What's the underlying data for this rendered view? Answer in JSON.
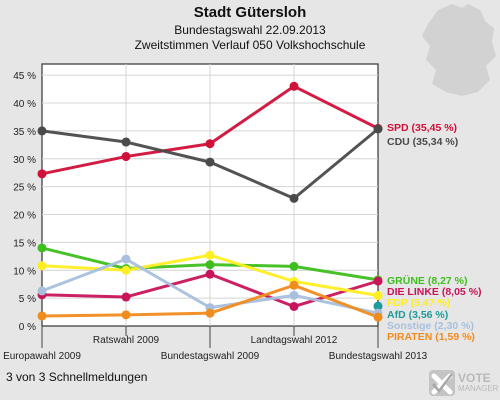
{
  "header": {
    "title": "Stadt Gütersloh",
    "subtitle": "Bundestagswahl 22.09.2013",
    "subtitle2": "Zweitstimmen Verlauf 050 Volkshochschule"
  },
  "footer": {
    "text": "3 von 3 Schnellmeldungen"
  },
  "logo": {
    "line1": "VOTE",
    "line2": "MANAGER"
  },
  "chart_data": {
    "type": "line",
    "x": [
      "Europawahl 2009",
      "Ratswahl 2009",
      "Bundestagswahl 2009",
      "Landtagswahl 2012",
      "Bundestagswahl 2013"
    ],
    "ylim": [
      0,
      47
    ],
    "yticks": [
      "0 %",
      "5 %",
      "10 %",
      "15 %",
      "20 %",
      "25 %",
      "30 %",
      "35 %",
      "40 %",
      "45 %"
    ],
    "grid": true,
    "series": [
      {
        "name": "SPD",
        "label": "SPD (35,45 %)",
        "color": "#d0103a",
        "values": [
          27.3,
          30.4,
          32.7,
          43.0,
          35.45
        ]
      },
      {
        "name": "CDU",
        "label": "CDU (35,34 %)",
        "color": "#4a4a4a",
        "values": [
          35.0,
          33.0,
          29.4,
          22.9,
          35.34
        ]
      },
      {
        "name": "GRÜNE",
        "label": "GRÜNE (8,27 %)",
        "color": "#3fbf1f",
        "values": [
          14.0,
          10.3,
          11.0,
          10.7,
          8.27
        ]
      },
      {
        "name": "DIE LINKE",
        "label": "DIE LINKE (8,05 %)",
        "color": "#c8145a",
        "values": [
          5.6,
          5.2,
          9.3,
          3.5,
          8.05
        ]
      },
      {
        "name": "FDP",
        "label": "FDP (5,47 %)",
        "color": "#ffee22",
        "values": [
          10.8,
          10.0,
          12.7,
          8.0,
          5.47
        ]
      },
      {
        "name": "AfD",
        "label": "AfD (3,56 %)",
        "color": "#1f9b9b",
        "values": [
          null,
          null,
          null,
          null,
          3.56
        ]
      },
      {
        "name": "Sonstige",
        "label": "Sonstige (2,30 %)",
        "color": "#a8c0de",
        "values": [
          6.3,
          12.0,
          3.3,
          5.5,
          2.3
        ]
      },
      {
        "name": "PIRATEN",
        "label": "PIRATEN (1,59 %)",
        "color": "#f08c1e",
        "values": [
          1.8,
          2.0,
          2.3,
          7.3,
          1.59
        ]
      }
    ]
  }
}
